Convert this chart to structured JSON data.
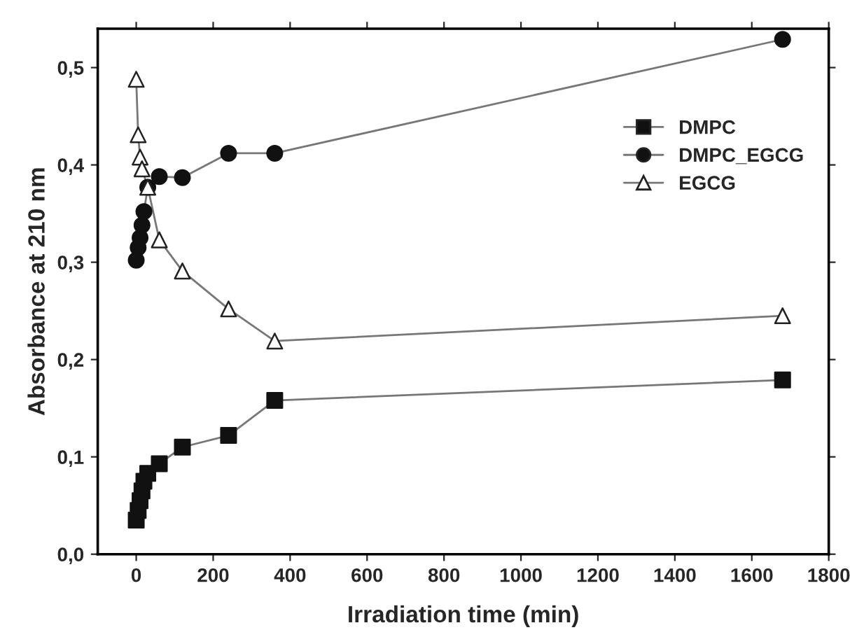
{
  "chart_data": {
    "type": "line",
    "xlabel": "Irradiation time (min)",
    "ylabel": "Absorbance at 210 nm",
    "xlim": [
      -100,
      1800
    ],
    "xticks": [
      0,
      200,
      400,
      600,
      800,
      1000,
      1200,
      1400,
      1600,
      1800
    ],
    "ylim": [
      0,
      0.54
    ],
    "yticks": [
      {
        "value": 0,
        "label": "0,0"
      },
      {
        "value": 0.1,
        "label": "0,1"
      },
      {
        "value": 0.2,
        "label": "0,2"
      },
      {
        "value": 0.3,
        "label": "0,3"
      },
      {
        "value": 0.4,
        "label": "0,4"
      },
      {
        "value": 0.5,
        "label": "0,5"
      }
    ],
    "grid": false,
    "legend": "top right",
    "line_style": "solid",
    "series": [
      {
        "name": "DMPC",
        "color": "#111111",
        "marker": "square",
        "x": [
          0,
          5,
          10,
          15,
          20,
          30,
          60,
          120,
          240,
          360,
          1680
        ],
        "values": [
          0.035,
          0.045,
          0.055,
          0.065,
          0.075,
          0.083,
          0.093,
          0.11,
          0.122,
          0.158,
          0.179
        ]
      },
      {
        "name": "DMPC_EGCG",
        "color": "#111111",
        "marker": "circle",
        "x": [
          0,
          5,
          10,
          15,
          20,
          30,
          60,
          120,
          240,
          360,
          1680
        ],
        "values": [
          0.302,
          0.315,
          0.325,
          0.338,
          0.352,
          0.377,
          0.388,
          0.387,
          0.412,
          0.412,
          0.529
        ]
      },
      {
        "name": "EGCG",
        "color": "#ffffff",
        "marker": "triangle",
        "x": [
          0,
          5,
          10,
          15,
          30,
          60,
          120,
          240,
          360,
          1680
        ],
        "values": [
          0.488,
          0.431,
          0.408,
          0.396,
          0.377,
          0.323,
          0.291,
          0.252,
          0.219,
          0.245
        ]
      }
    ]
  }
}
